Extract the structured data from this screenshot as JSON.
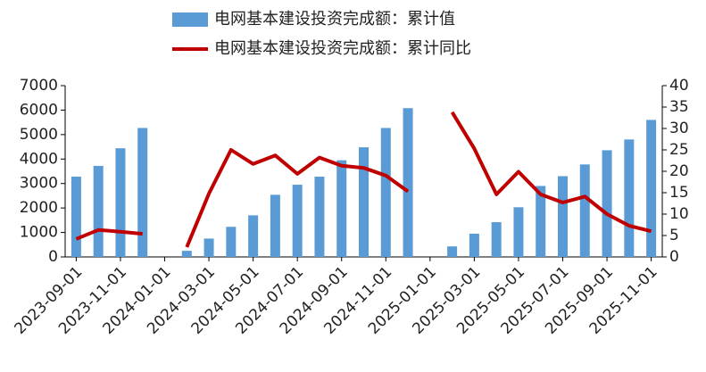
{
  "chart_data": {
    "type": "bar-line",
    "categories": [
      "2023-09-01",
      null,
      "2023-11-01",
      null,
      "2024-01-01",
      null,
      "2024-03-01",
      null,
      "2024-05-01",
      null,
      "2024-07-01",
      null,
      "2024-09-01",
      null,
      "2024-11-01",
      null,
      "2025-01-01",
      null,
      "2025-03-01",
      null,
      "2025-05-01",
      null,
      "2025-07-01",
      null,
      "2025-09-01",
      null,
      "2025-11-01"
    ],
    "series": [
      {
        "name": "电网基本建设投资完成额：累计值",
        "type": "bar",
        "color": "#5b9bd5",
        "values": [
          3280,
          3720,
          4440,
          5270,
          null,
          250,
          750,
          1230,
          1700,
          2540,
          2950,
          3280,
          3950,
          4480,
          5270,
          6080,
          null,
          430,
          950,
          1420,
          2030,
          2900,
          3300,
          3780,
          4360,
          4800,
          5600
        ]
      },
      {
        "name": "电网基本建设投资完成额：累计同比",
        "type": "line",
        "color": "#c00000",
        "axis": "y2",
        "values": [
          4.2,
          6.3,
          5.9,
          5.4,
          null,
          2.3,
          14.8,
          25.0,
          21.7,
          23.7,
          19.4,
          23.2,
          21.3,
          20.8,
          19.0,
          15.3,
          null,
          33.8,
          25.3,
          14.6,
          19.9,
          14.6,
          12.7,
          14.1,
          10.0,
          7.3,
          6.0
        ]
      }
    ],
    "ylim": [
      0,
      7000
    ],
    "yticks": [
      0,
      1000,
      2000,
      3000,
      4000,
      5000,
      6000,
      7000
    ],
    "y2lim": [
      0,
      40
    ],
    "y2ticks": [
      0,
      5,
      10,
      15,
      20,
      25,
      30,
      35,
      40
    ],
    "legend": "top"
  }
}
